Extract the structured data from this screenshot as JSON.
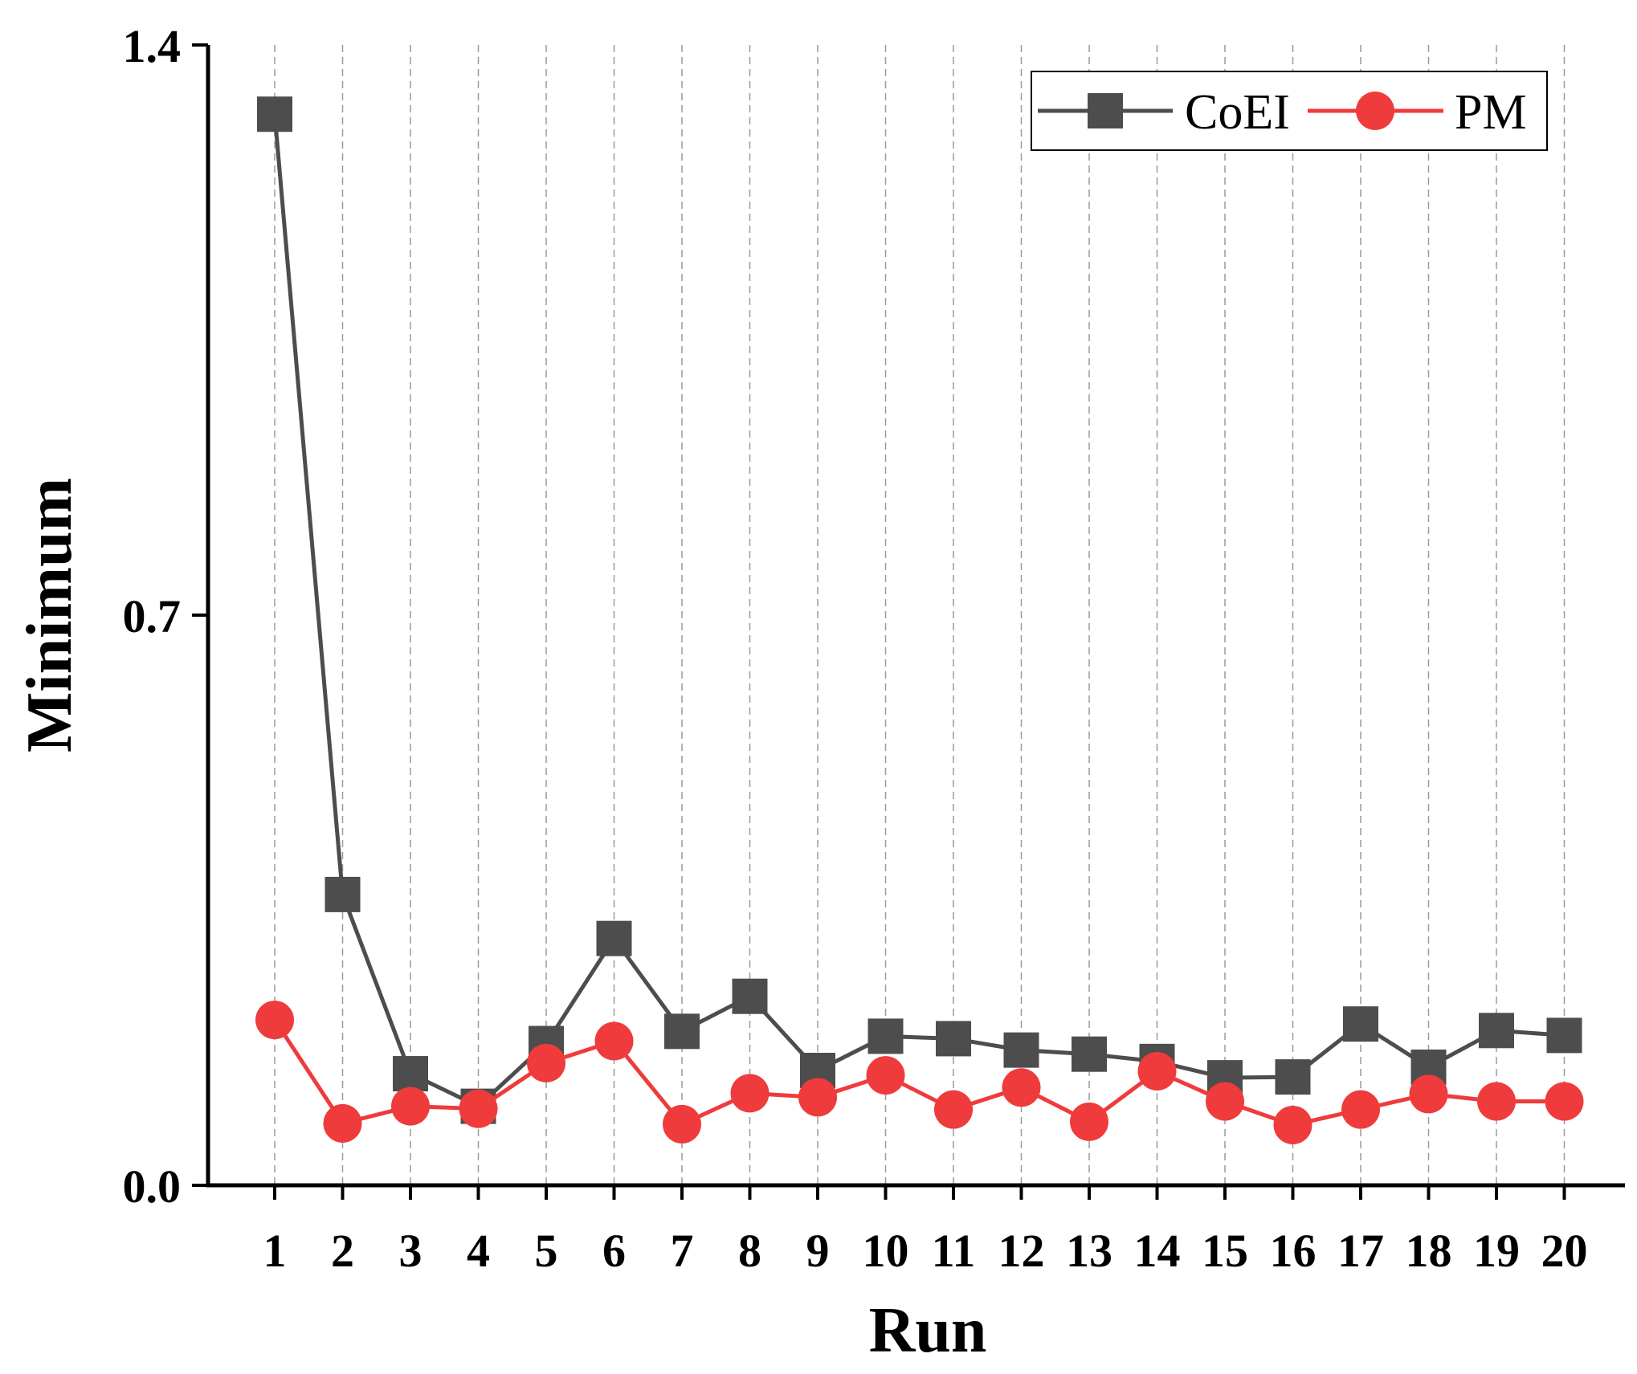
{
  "chart_data": {
    "type": "line",
    "title": "",
    "xlabel": "Run",
    "ylabel": "Minimum",
    "x": [
      1,
      2,
      3,
      4,
      5,
      6,
      7,
      8,
      9,
      10,
      11,
      12,
      13,
      14,
      15,
      16,
      17,
      18,
      19,
      20
    ],
    "xticks": [
      "1",
      "2",
      "3",
      "4",
      "5",
      "6",
      "7",
      "8",
      "9",
      "10",
      "11",
      "12",
      "13",
      "14",
      "15",
      "16",
      "17",
      "18",
      "19",
      "20"
    ],
    "ylim": [
      0,
      1.4
    ],
    "yticks": [
      "0.0",
      "0.7",
      "1.4"
    ],
    "ytick_values": [
      0,
      0.7,
      1.4
    ],
    "grid": "vertical dashed",
    "legend_position": "top-right",
    "series": [
      {
        "name": "CoEI",
        "color": "#4d4d4d",
        "marker": "square",
        "values": [
          1.315,
          0.357,
          0.137,
          0.097,
          0.174,
          0.303,
          0.189,
          0.232,
          0.141,
          0.183,
          0.18,
          0.166,
          0.161,
          0.152,
          0.132,
          0.133,
          0.198,
          0.145,
          0.19,
          0.184
        ]
      },
      {
        "name": "PM",
        "color": "#ef3b3b",
        "marker": "circle",
        "values": [
          0.203,
          0.076,
          0.097,
          0.094,
          0.15,
          0.177,
          0.075,
          0.113,
          0.108,
          0.135,
          0.093,
          0.12,
          0.078,
          0.14,
          0.103,
          0.074,
          0.093,
          0.112,
          0.103,
          0.103
        ]
      }
    ]
  }
}
